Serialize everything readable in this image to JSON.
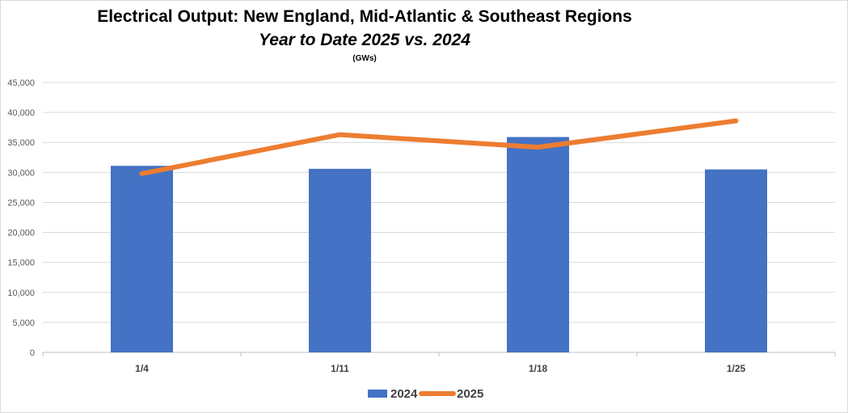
{
  "chart_data": {
    "type": "bar",
    "title": "Electrical Output:  New England, Mid-Atlantic & Southeast Regions",
    "subtitle": "Year to Date 2025 vs. 2024",
    "unit_label": "(GWs)",
    "categories": [
      "1/4",
      "1/11",
      "1/18",
      "1/25"
    ],
    "series": [
      {
        "name": "2024",
        "type": "bar",
        "color": "#4472C4",
        "values": [
          31100,
          30600,
          35900,
          30500
        ]
      },
      {
        "name": "2025",
        "type": "line",
        "color": "#ED7D31",
        "values": [
          29800,
          36300,
          34200,
          38600
        ]
      }
    ],
    "ylim": [
      0,
      45000
    ],
    "yticks": [
      "0",
      "5,000",
      "10,000",
      "15,000",
      "20,000",
      "25,000",
      "30,000",
      "35,000",
      "40,000",
      "45,000"
    ],
    "grid": true,
    "legend": "bottom-center"
  }
}
